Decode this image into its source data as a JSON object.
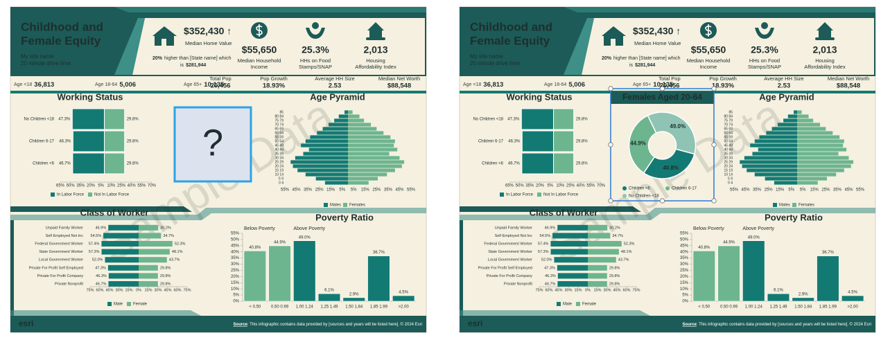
{
  "infographic": {
    "title_lines": [
      "Childhood and",
      "Female Equity"
    ],
    "site_name": "My site name",
    "drive_time": "20 minute drive time",
    "home_value": {
      "value": "$352,430 ↑",
      "label": "Median Home Value",
      "comparison_pct": "20%",
      "comparison_text": "higher than [State name] which",
      "comparison_text2": "is",
      "comparison_value": "$281,944"
    },
    "kpis": [
      {
        "value": "$55,650",
        "label_lines": [
          "Median Household",
          "Income"
        ]
      },
      {
        "value": "25.3%",
        "label_lines": [
          "HHs on Food",
          "Stamps/SNAP"
        ]
      },
      {
        "value": "2,013",
        "label_lines": [
          "Housing",
          "Affordability Index"
        ]
      }
    ],
    "age_stats": [
      {
        "label": "Age <18",
        "value": "36,813"
      },
      {
        "label": "Age 18-64",
        "value": "5,006"
      },
      {
        "label": "Age 65+",
        "value": "10,135"
      }
    ],
    "summary_stats": [
      {
        "label": "Total Pop",
        "value": "20,456"
      },
      {
        "label": "Pop Growth",
        "value": "18.93%"
      },
      {
        "label": "Average HH Size",
        "value": "2.53"
      },
      {
        "label": "Median Net Worth",
        "value": "$88,548"
      }
    ],
    "watermark": "Sample Data",
    "logo": "esri",
    "source_label": "Source",
    "source_text": ": This infographic contains data provided by [sources and years will be listed here]. © 2024 Esri"
  },
  "placeholder": "?",
  "chart_data": [
    {
      "type": "diverging_bar",
      "title": "Working Status",
      "categories": [
        "No Children <18",
        "Children 6-17",
        "Children <6"
      ],
      "series": [
        {
          "name": "In Labor Force",
          "color": "#137a73",
          "values": [
            47.3,
            46.3,
            46.7
          ],
          "value_labels": [
            "47.3%",
            "46.3%",
            "46.7%"
          ]
        },
        {
          "name": "Not In Labor Force",
          "color": "#6db58f",
          "values": [
            29.8,
            29.8,
            29.8
          ],
          "value_labels": [
            "29.8%",
            "29.8%",
            "29.8%"
          ]
        }
      ],
      "xlim": [
        -65,
        70
      ],
      "xticks": [
        {
          "value": -65,
          "label": "65%"
        },
        {
          "value": -50,
          "label": "50%"
        },
        {
          "value": -35,
          "label": "35%"
        },
        {
          "value": -20,
          "label": "20%"
        },
        {
          "value": -5,
          "label": "5%"
        },
        {
          "value": 10,
          "label": "10%"
        },
        {
          "value": 25,
          "label": "25%"
        },
        {
          "value": 40,
          "label": "40%"
        },
        {
          "value": 55,
          "label": "55%"
        },
        {
          "value": 70,
          "label": "70%"
        }
      ]
    },
    {
      "type": "pyramid",
      "title": "Age Pyramid",
      "categories": [
        "85",
        "80 84",
        "75 79",
        "70 74",
        "65 69",
        "60 64",
        "55 59",
        "50 54",
        "45 49",
        "40 44",
        "35 39",
        "30 34",
        "25 29",
        "20 24",
        "15 19",
        "10 14",
        "5 9",
        "0 4"
      ],
      "series": [
        {
          "name": "Males",
          "color": "#137a73",
          "values": [
            3,
            8,
            12,
            17,
            22,
            27,
            33,
            37,
            41,
            34,
            39,
            46,
            50,
            48,
            44,
            37,
            28,
            20
          ]
        },
        {
          "name": "Females",
          "color": "#6db58f",
          "values": [
            4,
            10,
            14,
            20,
            25,
            31,
            37,
            41,
            40,
            43,
            36,
            45,
            49,
            47,
            41,
            34,
            26,
            18
          ]
        }
      ],
      "xlim": [
        -55,
        55
      ],
      "xticks": [
        {
          "value": -55,
          "label": "55%"
        },
        {
          "value": -45,
          "label": "45%"
        },
        {
          "value": -35,
          "label": "35%"
        },
        {
          "value": -25,
          "label": "25%"
        },
        {
          "value": -15,
          "label": "15%"
        },
        {
          "value": -5,
          "label": "5%"
        },
        {
          "value": 5,
          "label": "5%"
        },
        {
          "value": 15,
          "label": "15%"
        },
        {
          "value": 25,
          "label": "25%"
        },
        {
          "value": 35,
          "label": "35%"
        },
        {
          "value": 45,
          "label": "45%"
        },
        {
          "value": 55,
          "label": "55%"
        }
      ]
    },
    {
      "type": "diverging_bar",
      "title": "Class of Worker",
      "categories": [
        "Unpaid Family Worker",
        "Self Employed Not Inc",
        "Federal Government Worker",
        "State Government Worker",
        "Local Government Worker",
        "Private For Profit Self Employed",
        "Private For Profit Company",
        "Private Nonprofit"
      ],
      "series": [
        {
          "name": "Male",
          "color": "#137a73",
          "values": [
            46.9,
            54.5,
            57.4,
            57.3,
            52.0,
            47.3,
            46.3,
            46.7
          ],
          "value_labels": [
            "46.9%",
            "54.5%",
            "57.4%",
            "57.3%",
            "52.0%",
            "47.3%",
            "46.3%",
            "46.7%"
          ]
        },
        {
          "name": "Female",
          "color": "#6db58f",
          "values": [
            30.2,
            34.7,
            52.3,
            48.1,
            43.7,
            29.8,
            29.8,
            29.8
          ],
          "value_labels": [
            "30.2%",
            "34.7%",
            "52.3%",
            "48.1%",
            "43.7%",
            "29.8%",
            "29.8%",
            "29.8%"
          ]
        }
      ],
      "xlim": [
        -75,
        75
      ],
      "xticks": [
        {
          "value": -75,
          "label": "75%"
        },
        {
          "value": -60,
          "label": "60%"
        },
        {
          "value": -45,
          "label": "45%"
        },
        {
          "value": -30,
          "label": "30%"
        },
        {
          "value": -15,
          "label": "15%"
        },
        {
          "value": 0,
          "label": "0%"
        },
        {
          "value": 15,
          "label": "15%"
        },
        {
          "value": 30,
          "label": "30%"
        },
        {
          "value": 45,
          "label": "45%"
        },
        {
          "value": 60,
          "label": "60%"
        },
        {
          "value": 75,
          "label": "75%"
        }
      ]
    },
    {
      "type": "bar",
      "title": "Poverty Ratio",
      "annotations": [
        "Below Poverty",
        "Above Poverty"
      ],
      "categories": [
        "< 0.50",
        "0.50 0.99",
        "1.00 1.24",
        "1.25 1.49",
        "1.50 1.84",
        "1.85 1.99",
        ">2.00"
      ],
      "values": [
        40.8,
        44.9,
        49.0,
        6.1,
        2.9,
        36.7,
        4.5
      ],
      "value_labels": [
        "40.8%",
        "44.9%",
        "49.0%",
        "6.1%",
        "2.9%",
        "36.7%",
        "4.5%"
      ],
      "colors": [
        "#6db58f",
        "#6db58f",
        "#137a73",
        "#137a73",
        "#137a73",
        "#137a73",
        "#137a73"
      ],
      "ylim": [
        0,
        55
      ],
      "yticks": [
        {
          "value": 0,
          "label": "0%"
        },
        {
          "value": 5,
          "label": "5%"
        },
        {
          "value": 10,
          "label": "10%"
        },
        {
          "value": 15,
          "label": "15%"
        },
        {
          "value": 20,
          "label": "20%"
        },
        {
          "value": 25,
          "label": "25%"
        },
        {
          "value": 30,
          "label": "30%"
        },
        {
          "value": 35,
          "label": "35%"
        },
        {
          "value": 40,
          "label": "40%"
        },
        {
          "value": 45,
          "label": "45%"
        },
        {
          "value": 50,
          "label": "50%"
        },
        {
          "value": 55,
          "label": "55%"
        }
      ]
    },
    {
      "type": "donut",
      "title": "Females Aged 20-64",
      "categories": [
        "Children <6",
        "Children 6-17",
        "No Children <18"
      ],
      "values": [
        40.8,
        44.9,
        49.0
      ],
      "value_labels": [
        "40.8%",
        "44.9%",
        "49.0%"
      ],
      "colors": [
        "#137a73",
        "#6db58f",
        "#8fc4b4"
      ]
    }
  ]
}
